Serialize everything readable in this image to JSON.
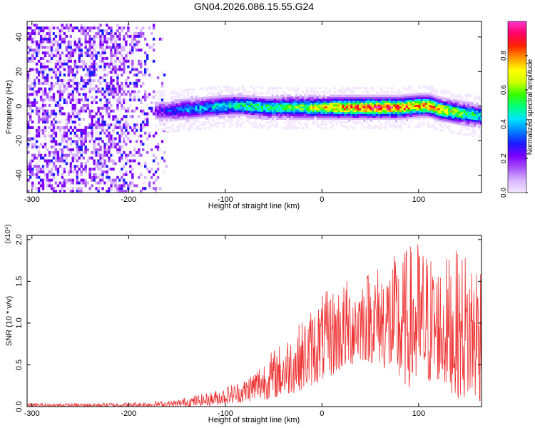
{
  "title": "GN04.2026.086.15.55.G24",
  "chart_data": [
    {
      "type": "heatmap",
      "xlabel": "Height of straight line (km)",
      "ylabel": "Frequency (Hz)",
      "xlim": [
        -305,
        165
      ],
      "ylim": [
        -50,
        49
      ],
      "xticks": [
        -300,
        -200,
        -100,
        0,
        100
      ],
      "yticks": [
        -40,
        -20,
        0,
        20,
        40
      ],
      "colorbar": {
        "label": "Normalized spectral amplitude",
        "range": [
          0,
          1
        ],
        "ticks": [
          "0.0",
          "0.2",
          "0.4",
          "0.6",
          "0.8"
        ],
        "colors": [
          "#f3e8ff",
          "#d8b4fe",
          "#a855f7",
          "#7c00ff",
          "#1a1aff",
          "#0080ff",
          "#00e5ff",
          "#00ff80",
          "#33ff00",
          "#ccff00",
          "#ffff00",
          "#ff9900",
          "#ff2200",
          "#ff0066",
          "#ff33cc"
        ]
      },
      "signal_track": {
        "x": [
          -175,
          -160,
          -140,
          -120,
          -100,
          -80,
          -60,
          -40,
          -20,
          0,
          20,
          40,
          60,
          80,
          100,
          110,
          120,
          130,
          140,
          150,
          165
        ],
        "center_freq": [
          -2,
          -2,
          -1,
          0,
          1,
          1,
          0,
          0,
          0,
          0,
          0,
          0,
          0,
          0,
          1,
          1,
          -1,
          -2,
          -3,
          -4,
          -5
        ],
        "peak_amplitude": [
          0.2,
          0.3,
          0.4,
          0.45,
          0.5,
          0.55,
          0.55,
          0.6,
          0.65,
          0.75,
          0.85,
          0.92,
          0.97,
          0.9,
          0.85,
          0.9,
          0.8,
          0.75,
          0.7,
          0.6,
          0.5
        ]
      }
    },
    {
      "type": "line",
      "xlabel": "Height of straight line (km)",
      "ylabel": "SNR (10 * v/v)",
      "yscale_label": "(x10⁴)",
      "xlim": [
        -305,
        165
      ],
      "ylim": [
        0,
        2.05
      ],
      "xticks": [
        -300,
        -200,
        -100,
        0,
        100
      ],
      "yticks": [
        "0.0",
        "0.5",
        "1.0",
        "1.5",
        "2.0"
      ],
      "series_color": "#ee3333",
      "envelope": {
        "x": [
          -305,
          -250,
          -200,
          -150,
          -140,
          -120,
          -100,
          -80,
          -60,
          -40,
          -20,
          0,
          20,
          40,
          60,
          80,
          100,
          120,
          140,
          165
        ],
        "upper": [
          0.04,
          0.04,
          0.05,
          0.08,
          0.12,
          0.16,
          0.24,
          0.34,
          0.58,
          0.8,
          1.05,
          1.35,
          1.5,
          1.62,
          1.72,
          1.85,
          2.02,
          1.75,
          1.88,
          1.9
        ],
        "lower": [
          0.0,
          0.0,
          0.0,
          0.0,
          0.0,
          0.01,
          0.03,
          0.05,
          0.08,
          0.12,
          0.2,
          0.3,
          0.42,
          0.55,
          0.5,
          0.25,
          0.2,
          0.3,
          0.1,
          0.05
        ]
      }
    }
  ]
}
